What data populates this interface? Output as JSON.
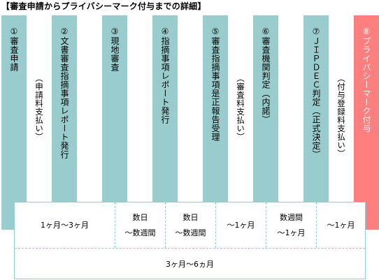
{
  "title": "【審査申請からプライバシーマーク付与までの詳細】",
  "steps": [
    {
      "label": "①審査申請"
    },
    {
      "label": "②文書審査指摘事項レポート発行"
    },
    {
      "label": "③現地審査"
    },
    {
      "label": "④指摘事項レポート発行"
    },
    {
      "label": "⑤審査指摘事項是正報告受理"
    },
    {
      "label": "⑥審査機関判定（内諾）"
    },
    {
      "label": "⑦ＪＩＰＤＥＣ判定（正式決定）"
    },
    {
      "label": "⑧プライバシーマーク付与"
    }
  ],
  "notes": [
    {
      "label": "（申請料支払い）"
    },
    {
      "label": "（審査料支払い）"
    },
    {
      "label": "（付与登録料支払い）"
    }
  ],
  "timeline": {
    "segments": [
      {
        "line1": "1ヶ月～3ヶ月",
        "line2": ""
      },
      {
        "line1": "数日",
        "line2": "～数週間"
      },
      {
        "line1": "数日",
        "line2": "～数週間"
      },
      {
        "line1": "～1ヶ月",
        "line2": ""
      },
      {
        "line1": "数週間",
        "line2": "～1ヶ月"
      },
      {
        "line1": "～1ヶ月",
        "line2": ""
      }
    ],
    "total": "3ヶ月～6ヵ月"
  },
  "colors": {
    "step": "#99cccc",
    "final": "#ff7f7f",
    "border": "#99cccc"
  }
}
